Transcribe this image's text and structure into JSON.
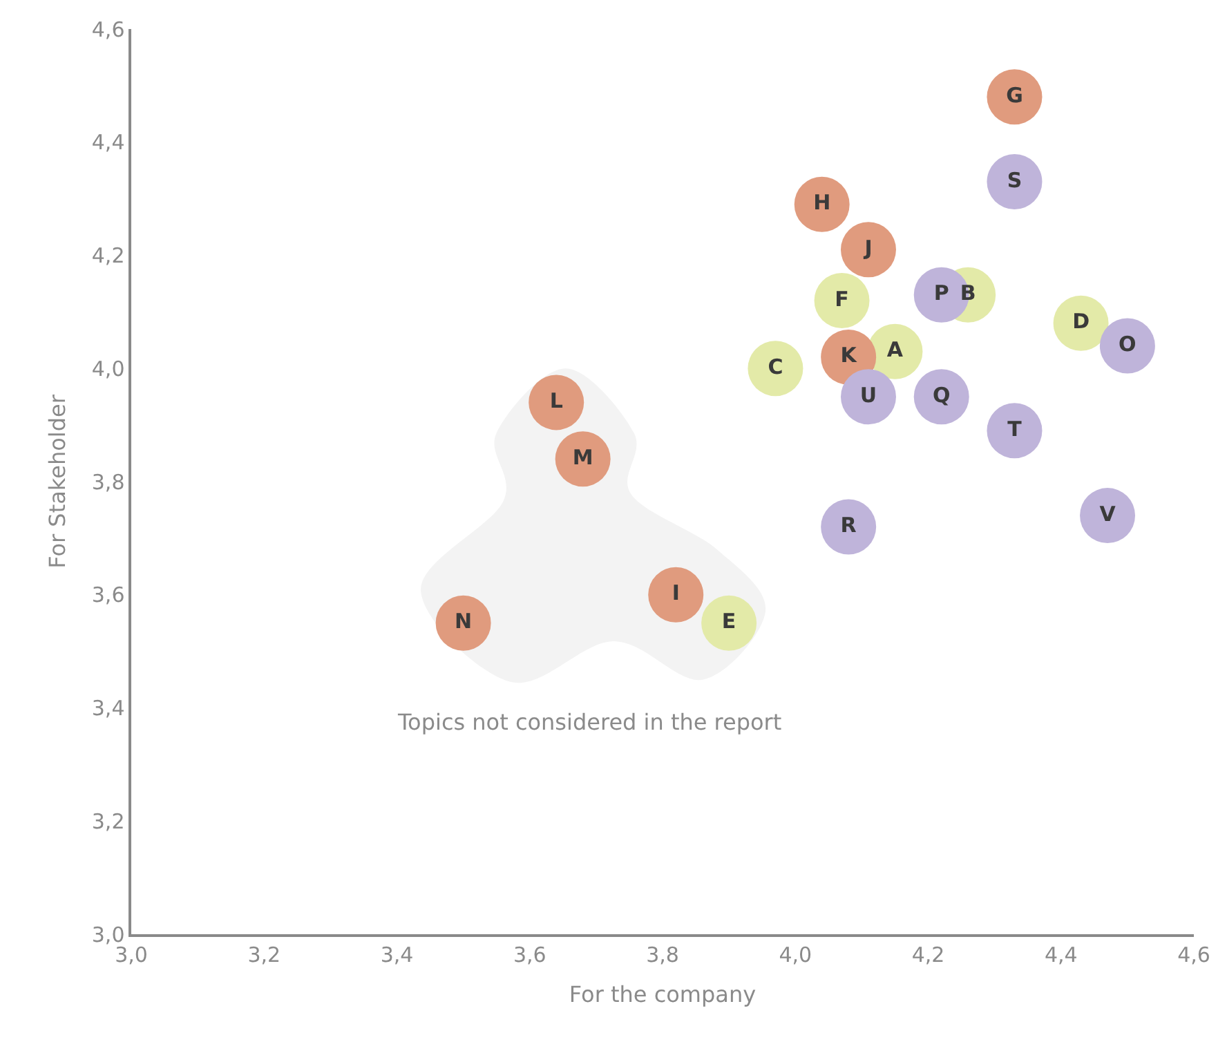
{
  "chart_data": {
    "type": "scatter",
    "xlabel": "For the company",
    "ylabel": "For Stakeholder",
    "xlim": [
      3.0,
      4.6
    ],
    "ylim": [
      3.0,
      4.6
    ],
    "xticks": [
      {
        "value": 3.0,
        "label": "3,0"
      },
      {
        "value": 3.2,
        "label": "3,2"
      },
      {
        "value": 3.4,
        "label": "3,4"
      },
      {
        "value": 3.6,
        "label": "3,6"
      },
      {
        "value": 3.8,
        "label": "3,8"
      },
      {
        "value": 4.0,
        "label": "4,0"
      },
      {
        "value": 4.2,
        "label": "4,2"
      },
      {
        "value": 4.4,
        "label": "4,4"
      },
      {
        "value": 4.6,
        "label": "4,6"
      }
    ],
    "yticks": [
      {
        "value": 3.0,
        "label": "3,0"
      },
      {
        "value": 3.2,
        "label": "3,2"
      },
      {
        "value": 3.4,
        "label": "3,4"
      },
      {
        "value": 3.6,
        "label": "3,6"
      },
      {
        "value": 3.8,
        "label": "3,8"
      },
      {
        "value": 4.0,
        "label": "4,0"
      },
      {
        "value": 4.2,
        "label": "4,2"
      },
      {
        "value": 4.4,
        "label": "4,4"
      },
      {
        "value": 4.6,
        "label": "4,6"
      }
    ],
    "grid": false,
    "marker": "circle",
    "annotations": [
      "Topics not considered in the report"
    ],
    "series": [
      {
        "color": "#e3eaa8",
        "x": [
          4.15,
          4.26,
          3.97,
          4.43,
          3.9,
          4.07
        ],
        "values": [
          4.03,
          4.13,
          4.0,
          4.08,
          3.55,
          4.12
        ],
        "value_labels": [
          "A",
          "B",
          "C",
          "D",
          "E",
          "F"
        ]
      },
      {
        "color": "#e09b7e",
        "x": [
          4.33,
          4.04,
          3.82,
          4.11,
          4.08,
          3.64,
          3.68,
          3.5
        ],
        "values": [
          4.48,
          4.29,
          3.6,
          4.21,
          4.02,
          3.94,
          3.84,
          3.55
        ],
        "value_labels": [
          "G",
          "H",
          "I",
          "J",
          "K",
          "L",
          "M",
          "N"
        ]
      },
      {
        "color": "#bfb4da",
        "x": [
          4.5,
          4.22,
          4.22,
          4.08,
          4.33,
          4.33,
          4.11,
          4.47
        ],
        "values": [
          4.04,
          4.13,
          3.95,
          3.72,
          4.33,
          3.89,
          3.95,
          3.74
        ],
        "value_labels": [
          "O",
          "P",
          "Q",
          "R",
          "S",
          "T",
          "U",
          "V"
        ]
      }
    ]
  }
}
